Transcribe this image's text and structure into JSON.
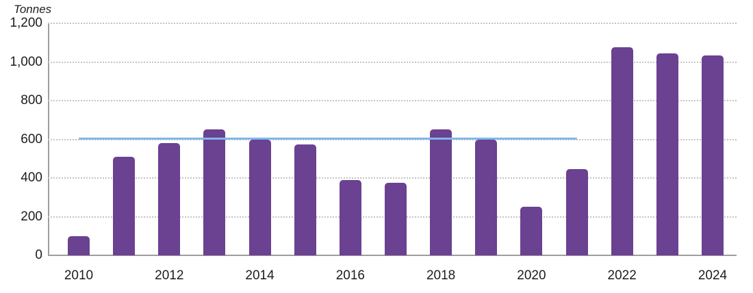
{
  "chart_data": {
    "type": "bar",
    "title": "",
    "xlabel": "",
    "ylabel": "Tonnes",
    "categories": [
      "2010",
      "2011",
      "2012",
      "2013",
      "2014",
      "2015",
      "2016",
      "2017",
      "2018",
      "2019",
      "2020",
      "2021",
      "2022",
      "2023",
      "2024"
    ],
    "values": [
      100,
      510,
      580,
      650,
      600,
      575,
      390,
      375,
      650,
      600,
      250,
      445,
      1075,
      1045,
      1035
    ],
    "ylim": [
      0,
      1200
    ],
    "y_ticks": [
      0,
      200,
      400,
      600,
      800,
      1000,
      1200
    ],
    "x_labeled_categories": [
      "2010",
      "2012",
      "2014",
      "2016",
      "2018",
      "2020",
      "2022",
      "2024"
    ],
    "grid": "horizontal-dotted",
    "legend": "none",
    "reference_line": {
      "value": 605,
      "from_category": "2010",
      "to_category": "2021",
      "color": "#7db8e8"
    },
    "colors": {
      "bar": "#6b4191",
      "reference_line": "#7db8e8",
      "gridline": "#c2c2c2",
      "axis": "#9e9e9e",
      "text": "#1c1c1c"
    }
  }
}
